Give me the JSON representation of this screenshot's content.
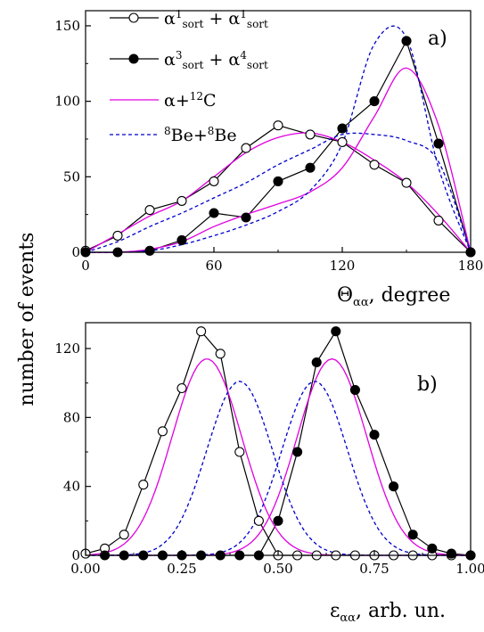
{
  "chart_data": [
    {
      "type": "line",
      "panel_label": "a)",
      "xlabel": {
        "main": "Θ",
        "sub": "αα",
        "suffix": ", degree"
      },
      "ylabel": "number of events",
      "xlim": [
        0,
        180
      ],
      "ylim": [
        0,
        160
      ],
      "xticks": [
        "0",
        "60",
        "120",
        "180"
      ],
      "yticks": [
        "0",
        "50",
        "100",
        "150"
      ],
      "legend": [
        {
          "parts": [
            [
              "α",
              ""
            ],
            [
              "1",
              "sup"
            ],
            [
              "sort",
              "sub"
            ],
            [
              " + α",
              ""
            ],
            [
              "1",
              "sup"
            ],
            [
              "sort",
              "sub"
            ]
          ]
        },
        {
          "parts": [
            [
              "α",
              ""
            ],
            [
              "3",
              "sup"
            ],
            [
              "sort",
              "sub"
            ],
            [
              " + α",
              ""
            ],
            [
              "4",
              "sup"
            ],
            [
              "sort",
              "sub"
            ]
          ]
        },
        {
          "parts": [
            [
              "α+",
              ""
            ],
            [
              "12",
              "sup"
            ],
            [
              "C",
              ""
            ]
          ]
        },
        {
          "parts": [
            [
              "8",
              "sup"
            ],
            [
              "Be+",
              ""
            ],
            [
              "8",
              "sup"
            ],
            [
              "Be",
              ""
            ]
          ]
        }
      ],
      "series": [
        {
          "marker": "open-circle",
          "color": "#000000",
          "x": [
            0,
            15,
            30,
            45,
            60,
            75,
            90,
            105,
            120,
            135,
            150,
            165,
            180
          ],
          "y": [
            1,
            11,
            28,
            34,
            47,
            69,
            84,
            78,
            73,
            58,
            46,
            21,
            0
          ]
        },
        {
          "marker": "filled-circle",
          "color": "#000000",
          "x": [
            0,
            15,
            30,
            45,
            60,
            75,
            90,
            105,
            120,
            135,
            150,
            165,
            180
          ],
          "y": [
            0,
            0,
            1,
            8,
            26,
            23,
            47,
            56,
            82,
            100,
            140,
            72,
            0
          ]
        },
        {
          "line": "solid",
          "color": "#e000e0",
          "x": [
            0,
            15,
            30,
            45,
            60,
            75,
            90,
            105,
            120,
            135,
            150,
            165,
            180
          ],
          "y": [
            0,
            12,
            24,
            34,
            50,
            66,
            76,
            79,
            73,
            61,
            46,
            25,
            0
          ]
        },
        {
          "line": "solid",
          "color": "#e000e0",
          "x": [
            0,
            15,
            30,
            45,
            60,
            75,
            90,
            105,
            120,
            135,
            150,
            165,
            180
          ],
          "y": [
            0,
            0,
            2,
            7,
            17,
            25,
            32,
            40,
            56,
            90,
            122,
            84,
            0
          ]
        },
        {
          "line": "dashed",
          "color": "#0000cc",
          "x": [
            0,
            15,
            30,
            45,
            60,
            75,
            90,
            105,
            120,
            135,
            150,
            165,
            180
          ],
          "y": [
            0,
            7,
            17,
            26,
            36,
            46,
            58,
            68,
            78,
            78,
            74,
            60,
            0
          ]
        },
        {
          "line": "dashed",
          "color": "#0000cc",
          "x": [
            0,
            15,
            30,
            45,
            60,
            75,
            90,
            105,
            120,
            135,
            150,
            165,
            180
          ],
          "y": [
            0,
            0,
            1,
            5,
            11,
            18,
            27,
            41,
            72,
            138,
            142,
            56,
            0
          ]
        }
      ]
    },
    {
      "type": "line",
      "panel_label": "b)",
      "xlabel": {
        "main": "ε",
        "sub": "αα",
        "suffix": ", arb. un."
      },
      "ylabel": "number of events",
      "xlim": [
        0,
        1
      ],
      "ylim": [
        0,
        135
      ],
      "xticks": [
        "0.00",
        "0.25",
        "0.50",
        "0.75",
        "1.00"
      ],
      "yticks": [
        "0",
        "40",
        "80",
        "120"
      ],
      "series": [
        {
          "marker": "open-circle",
          "color": "#000000",
          "x": [
            0,
            0.05,
            0.1,
            0.15,
            0.2,
            0.25,
            0.3,
            0.35,
            0.4,
            0.45,
            0.5,
            0.55,
            0.6,
            0.65,
            0.7,
            0.75,
            0.8,
            0.85,
            0.9,
            0.95,
            1.0
          ],
          "y": [
            1,
            4,
            12,
            41,
            72,
            97,
            130,
            117,
            60,
            20,
            0,
            0,
            0,
            0,
            0,
            0,
            0,
            0,
            0,
            0,
            0
          ]
        },
        {
          "marker": "filled-circle",
          "color": "#000000",
          "x": [
            0.05,
            0.1,
            0.15,
            0.2,
            0.25,
            0.3,
            0.35,
            0.4,
            0.45,
            0.5,
            0.55,
            0.6,
            0.65,
            0.7,
            0.75,
            0.8,
            0.85,
            0.9,
            0.95,
            1.0
          ],
          "y": [
            0,
            0,
            0,
            0,
            0,
            0,
            0,
            0,
            0,
            20,
            60,
            112,
            130,
            96,
            70,
            40,
            12,
            4,
            1,
            0
          ]
        },
        {
          "line": "solid",
          "color": "#e000e0",
          "gaussian": {
            "mu": 0.315,
            "sigma": 0.09,
            "amp": 114
          }
        },
        {
          "line": "solid",
          "color": "#e000e0",
          "gaussian": {
            "mu": 0.64,
            "sigma": 0.09,
            "amp": 114
          }
        },
        {
          "line": "dashed",
          "color": "#0000cc",
          "gaussian": {
            "mu": 0.4,
            "sigma": 0.085,
            "amp": 101
          }
        },
        {
          "line": "dashed",
          "color": "#0000cc",
          "gaussian": {
            "mu": 0.595,
            "sigma": 0.085,
            "amp": 101
          }
        }
      ]
    }
  ]
}
